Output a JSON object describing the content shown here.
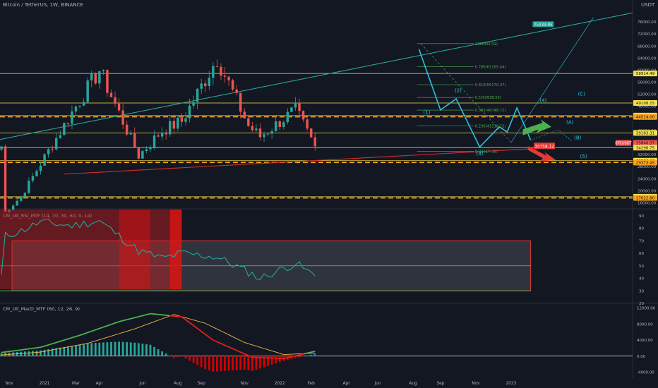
{
  "header": {
    "title": "Bitcoin / TetherUS, 1W, BINANCE",
    "currency": "USDT"
  },
  "colors": {
    "background": "#131722",
    "up": "#26a69a",
    "down": "#ef5350",
    "yellow_line": "#f5e04a",
    "orange_dash": "#f7a21b",
    "trend_green": "#26a69a",
    "wave_cyan": "#2fc1d6",
    "rsi_line": "#26a69a",
    "macd_green": "#4caf50",
    "macd_red": "#e31b1b",
    "signal_orange": "#f5b642"
  },
  "main_panel": {
    "y_ticks": [
      "76000.00",
      "72000.00",
      "68000.00",
      "64000.00",
      "60000.00",
      "56000.00",
      "52000.00",
      "48000.00",
      "44000.00",
      "40000.00",
      "36000.00",
      "32000.00",
      "28000.00",
      "24000.00",
      "20000.00",
      "16000.00"
    ],
    "price_labels": [
      {
        "text": "75233.85",
        "color": "#26a69a",
        "price": 75233.85
      },
      {
        "text": "58914.49",
        "color": "#f5e04a",
        "price": 58914.49
      },
      {
        "text": "49108.15",
        "color": "#f5e04a",
        "price": 49108.15
      },
      {
        "text": "44922.58",
        "color": "#f5e04a",
        "price": 44922.58
      },
      {
        "text": "44514.00",
        "color": "#f7a21b",
        "price": 44514.0
      },
      {
        "text": "39183.31",
        "color": "#f5e04a",
        "price": 39183.31
      },
      {
        "text": "35848.37",
        "color": "#ef5350",
        "price": 35848.37
      },
      {
        "text": "34298.75",
        "color": "#f5e04a",
        "price": 34298.75
      },
      {
        "text": "29973.96",
        "color": "#f5e04a",
        "price": 29973.96
      },
      {
        "text": "29373.45",
        "color": "#f7a21b",
        "price": 29373.45
      },
      {
        "text": "18015.06",
        "color": "#f5e04a",
        "price": 18015.06
      },
      {
        "text": "17622.80",
        "color": "#f7a21b",
        "price": 17622.8
      }
    ],
    "symbol_tag": "BTCUSDT",
    "current_price_tag": "34758.12",
    "fib_labels": [
      {
        "text": "1(68802.01)",
        "price": 68802.01
      },
      {
        "text": "0.786(61165.44)",
        "price": 61165.44
      },
      {
        "text": "0.618(55170.37)",
        "price": 55170.37
      },
      {
        "text": "0.5(50938.55)",
        "price": 50938.55
      },
      {
        "text": "0.382(46748.72)",
        "price": 46748.72
      },
      {
        "text": "0.236(41538.72)",
        "price": 41538.72
      },
      {
        "text": "0(33117.38)",
        "price": 33117.38
      }
    ],
    "wave_labels": [
      "(1)",
      "(2)",
      "(3)",
      "(4)",
      "(5)",
      "(A)",
      "(B)",
      "(C)"
    ]
  },
  "x_axis": {
    "ticks": [
      "Nov",
      "2021",
      "Mar",
      "Apr",
      "Jun",
      "Aug",
      "Sep",
      "Nov",
      "2022",
      "Feb",
      "Apr",
      "Jun",
      "Aug",
      "Sep",
      "Nov",
      "2023"
    ]
  },
  "rsi_panel": {
    "title": "CM_Ult_RSI_MTF (14, 70, 30, 60, 0, 14)",
    "y_ticks": [
      "90",
      "80",
      "70",
      "60",
      "50",
      "40",
      "30",
      "20"
    ],
    "upper": 70,
    "mid": 50,
    "lower": 30
  },
  "macd_panel": {
    "title": "CM_Ult_MacD_MTF (60, 12, 26, 9)",
    "y_ticks": [
      "12000.00",
      "8000.00",
      "4000.00",
      "0.00",
      "-4000.00"
    ]
  },
  "chart_data": {
    "type": "candlestick",
    "title": "Bitcoin / TetherUS, 1W, BINANCE",
    "x": [
      "2020-10-26",
      "2020-11-23",
      "2020-12-28",
      "2021-02-22",
      "2021-04-12",
      "2021-06-21",
      "2021-08-02",
      "2021-09-06",
      "2021-11-08",
      "2022-01-03",
      "2022-01-24",
      "2022-03-28",
      "2022-05-02"
    ],
    "close": [
      13000,
      18000,
      29000,
      46000,
      60000,
      31600,
      40000,
      43000,
      64000,
      41500,
      38000,
      46800,
      34758
    ],
    "rsi": [
      74,
      78,
      85,
      82,
      86,
      62,
      56,
      60,
      57,
      45,
      40,
      52,
      42
    ],
    "ylim": [
      14000,
      80000
    ],
    "rsi_ylim": [
      20,
      95
    ],
    "macd_ylim": [
      -5500,
      13000
    ]
  }
}
